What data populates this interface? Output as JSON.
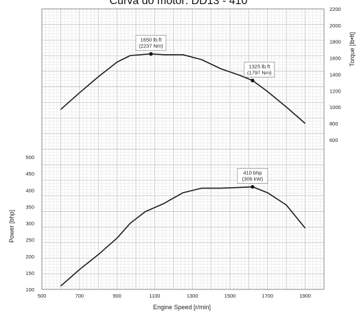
{
  "chart_data": {
    "type": "line",
    "title": "Curva do motor: DD13 - 410",
    "xlabel": "Engine Speed [r/min]",
    "xlim": [
      500,
      2000
    ],
    "xticks": [
      "500",
      "700",
      "900",
      "1100",
      "1300",
      "1500",
      "1700",
      "1900"
    ],
    "torque_axis": {
      "label": "Torque [lb•ft]",
      "ylim": [
        400,
        2200
      ],
      "ticks": [
        "600",
        "800",
        "1000",
        "1200",
        "1400",
        "1600",
        "1800",
        "2000",
        "2200"
      ]
    },
    "power_axis": {
      "label": "Power [bhp]",
      "ylim": [
        100,
        500
      ],
      "ticks": [
        "100",
        "150",
        "200",
        "250",
        "300",
        "350",
        "400",
        "450",
        "500"
      ]
    },
    "grid": true,
    "series": [
      {
        "axis": "torque",
        "x": [
          600,
          700,
          800,
          900,
          970,
          1080,
          1150,
          1250,
          1350,
          1450,
          1550,
          1620,
          1700,
          1800,
          1900
        ],
        "y": [
          970,
          1175,
          1370,
          1550,
          1630,
          1650,
          1640,
          1640,
          1580,
          1470,
          1390,
          1325,
          1190,
          1000,
          800
        ]
      },
      {
        "axis": "power",
        "x": [
          600,
          650,
          700,
          800,
          900,
          970,
          1050,
          1150,
          1250,
          1350,
          1450,
          1550,
          1620,
          1700,
          1800,
          1900
        ],
        "y": [
          110,
          135,
          160,
          205,
          255,
          300,
          335,
          360,
          392,
          406,
          406,
          408,
          410,
          392,
          355,
          285
        ]
      }
    ],
    "annotations": [
      {
        "series": 0,
        "x": 1080,
        "y": 1650,
        "lines": [
          "1650 lb.ft",
          "(2237 Nm)"
        ]
      },
      {
        "series": 0,
        "x": 1620,
        "y": 1325,
        "lines": [
          "1325 lb.ft",
          "(1797 Nm)"
        ]
      },
      {
        "series": 1,
        "x": 1620,
        "y": 410,
        "lines": [
          "410 bhp",
          "(306 kW)"
        ]
      }
    ]
  }
}
